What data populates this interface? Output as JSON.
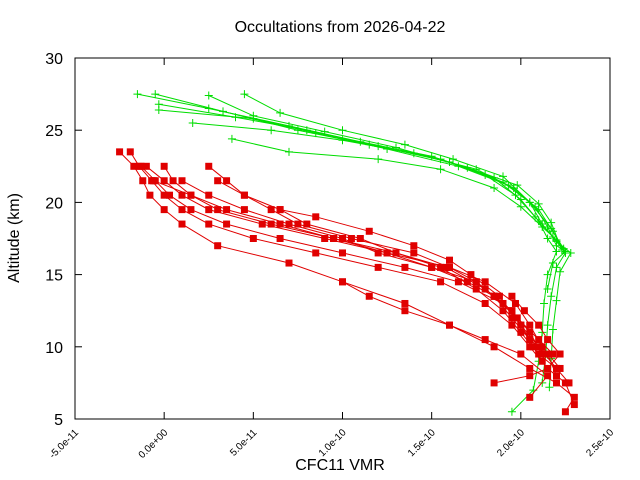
{
  "chart_data": {
    "type": "line",
    "title": "Occultations from 2026-04-22",
    "xlabel": "CFC11 VMR",
    "ylabel": "Altitude (km)",
    "xlim": [
      -5e-11,
      2.5e-10
    ],
    "ylim": [
      5,
      30
    ],
    "grid": false,
    "legend": "none",
    "x_tick_labels": [
      "-5.0e-11",
      "0.0e+00",
      "5.0e-11",
      "1.0e-10",
      "1.5e-10",
      "2.0e-10",
      "2.5e-10"
    ],
    "y_tick_labels": [
      "5",
      "10",
      "15",
      "20",
      "25",
      "30"
    ],
    "colors": {
      "green": "#00dd00",
      "red": "#e00000"
    },
    "series": [
      {
        "color": "green",
        "marker": "plus",
        "points": [
          [
            -5e-12,
            27.5
          ],
          [
            3.3e-11,
            26.3
          ],
          [
            7.5e-11,
            25.0
          ],
          [
            1.15e-10,
            24.0
          ],
          [
            1.55e-10,
            23.0
          ],
          [
            1.85e-10,
            21.7
          ],
          [
            2e-10,
            20.2
          ],
          [
            2.1e-10,
            18.7
          ],
          [
            2.15e-10,
            17.5
          ],
          [
            2.2e-10,
            16.6
          ],
          [
            2.15e-10,
            15.0
          ],
          [
            2.13e-10,
            13.0
          ],
          [
            2.12e-10,
            11.0
          ],
          [
            2.1e-10,
            9.0
          ],
          [
            2.07e-10,
            7.0
          ],
          [
            1.95e-10,
            5.5
          ]
        ]
      },
      {
        "color": "green",
        "marker": "plus",
        "points": [
          [
            -1.5e-11,
            27.5
          ],
          [
            2.5e-11,
            26.5
          ],
          [
            7e-11,
            25.3
          ],
          [
            1.1e-10,
            24.2
          ],
          [
            1.5e-10,
            23.2
          ],
          [
            1.8e-10,
            21.9
          ],
          [
            1.97e-10,
            20.5
          ],
          [
            2.08e-10,
            19.0
          ],
          [
            2.18e-10,
            17.6
          ],
          [
            2.25e-10,
            16.5
          ],
          [
            2.2e-10,
            15.5
          ],
          [
            2.17e-10,
            13.5
          ],
          [
            2.15e-10,
            11.5
          ],
          [
            2.14e-10,
            9.5
          ],
          [
            2.12e-10,
            7.5
          ]
        ]
      },
      {
        "color": "green",
        "marker": "plus",
        "points": [
          [
            -3e-12,
            26.8
          ],
          [
            4e-11,
            25.9
          ],
          [
            8e-11,
            25.0
          ],
          [
            1.2e-10,
            23.9
          ],
          [
            1.6e-10,
            22.8
          ],
          [
            1.9e-10,
            21.4
          ],
          [
            2.05e-10,
            20.0
          ],
          [
            2.12e-10,
            18.5
          ],
          [
            2.2e-10,
            17.3
          ],
          [
            2.28e-10,
            16.5
          ],
          [
            2.22e-10,
            15.2
          ],
          [
            2.2e-10,
            13.2
          ],
          [
            2.18e-10,
            11.2
          ],
          [
            2.17e-10,
            9.2
          ],
          [
            2.16e-10,
            7.2
          ]
        ]
      },
      {
        "color": "green",
        "marker": "plus",
        "points": [
          [
            -3e-12,
            26.4
          ],
          [
            5e-11,
            25.8
          ],
          [
            8.5e-11,
            24.8
          ],
          [
            1.25e-10,
            23.7
          ],
          [
            1.65e-10,
            22.5
          ],
          [
            1.93e-10,
            21.2
          ],
          [
            2.08e-10,
            19.7
          ],
          [
            2.15e-10,
            18.3
          ],
          [
            2.2e-10,
            17.0
          ],
          [
            2.25e-10,
            16.6
          ],
          [
            2.18e-10,
            15.8
          ],
          [
            2.15e-10,
            14.0
          ]
        ]
      },
      {
        "color": "green",
        "marker": "plus",
        "points": [
          [
            1.6e-11,
            25.5
          ],
          [
            6e-11,
            25.0
          ],
          [
            1e-10,
            24.3
          ],
          [
            1.4e-10,
            23.4
          ],
          [
            1.75e-10,
            22.3
          ],
          [
            1.96e-10,
            21.0
          ],
          [
            2.1e-10,
            19.5
          ],
          [
            2.18e-10,
            18.0
          ],
          [
            2.24e-10,
            16.8
          ]
        ]
      },
      {
        "color": "green",
        "marker": "plus",
        "points": [
          [
            3.8e-11,
            24.4
          ],
          [
            7e-11,
            23.5
          ],
          [
            1.2e-10,
            23.0
          ],
          [
            1.55e-10,
            22.3
          ],
          [
            1.85e-10,
            21.0
          ],
          [
            2e-10,
            19.7
          ],
          [
            2.12e-10,
            18.3
          ],
          [
            2.2e-10,
            17.4
          ],
          [
            2.25e-10,
            16.6
          ]
        ]
      },
      {
        "color": "green",
        "marker": "plus",
        "points": [
          [
            2.5e-11,
            27.4
          ],
          [
            5e-11,
            26.0
          ],
          [
            9e-11,
            24.9
          ],
          [
            1.3e-10,
            23.8
          ],
          [
            1.7e-10,
            22.4
          ],
          [
            1.98e-10,
            21.2
          ],
          [
            2.1e-10,
            19.9
          ],
          [
            2.17e-10,
            18.6
          ],
          [
            2.23e-10,
            16.7
          ]
        ]
      },
      {
        "color": "green",
        "marker": "plus",
        "points": [
          [
            4.5e-11,
            27.5
          ],
          [
            6.5e-11,
            26.2
          ],
          [
            1e-10,
            25.0
          ],
          [
            1.35e-10,
            24.0
          ],
          [
            1.62e-10,
            23.0
          ],
          [
            1.9e-10,
            21.8
          ],
          [
            2.05e-10,
            20.0
          ],
          [
            2.17e-10,
            18.2
          ],
          [
            2.24e-10,
            16.7
          ]
        ]
      },
      {
        "color": "red",
        "marker": "square",
        "points": [
          [
            -2.5e-11,
            23.5
          ],
          [
            -1.7e-11,
            22.5
          ],
          [
            -1.2e-11,
            21.5
          ],
          [
            -8e-12,
            20.5
          ],
          [
            0,
            19.5
          ],
          [
            1e-11,
            18.5
          ],
          [
            3e-11,
            17.0
          ],
          [
            7e-11,
            15.8
          ],
          [
            1e-10,
            14.5
          ],
          [
            1.35e-10,
            13.0
          ],
          [
            1.6e-10,
            11.5
          ],
          [
            1.85e-10,
            10.0
          ],
          [
            2.05e-10,
            8.5
          ],
          [
            2.2e-10,
            7.5
          ],
          [
            2.3e-10,
            6.5
          ],
          [
            2.25e-10,
            5.5
          ]
        ]
      },
      {
        "color": "red",
        "marker": "square",
        "points": [
          [
            -1.9e-11,
            23.5
          ],
          [
            -1.4e-11,
            22.5
          ],
          [
            -7e-12,
            21.5
          ],
          [
            0,
            20.5
          ],
          [
            1e-11,
            19.5
          ],
          [
            2.5e-11,
            18.5
          ],
          [
            5e-11,
            17.5
          ],
          [
            8.5e-11,
            16.5
          ],
          [
            1.2e-10,
            15.5
          ],
          [
            1.55e-10,
            14.5
          ],
          [
            1.8e-10,
            13.0
          ],
          [
            1.95e-10,
            11.5
          ],
          [
            2.05e-10,
            10.0
          ],
          [
            2.15e-10,
            8.5
          ],
          [
            2.25e-10,
            7.5
          ],
          [
            2.3e-10,
            6.0
          ]
        ]
      },
      {
        "color": "red",
        "marker": "square",
        "points": [
          [
            -1.3e-11,
            22.5
          ],
          [
            -5e-12,
            21.5
          ],
          [
            3e-12,
            20.5
          ],
          [
            1.5e-11,
            19.5
          ],
          [
            3.5e-11,
            18.5
          ],
          [
            6.5e-11,
            17.5
          ],
          [
            1e-10,
            16.5
          ],
          [
            1.35e-10,
            15.5
          ],
          [
            1.65e-10,
            14.5
          ],
          [
            1.9e-10,
            13.0
          ],
          [
            2e-10,
            11.5
          ],
          [
            2.1e-10,
            10.0
          ],
          [
            2.2e-10,
            8.5
          ],
          [
            2.27e-10,
            7.5
          ]
        ]
      },
      {
        "color": "red",
        "marker": "square",
        "points": [
          [
            -1e-11,
            22.5
          ],
          [
            0,
            21.5
          ],
          [
            1e-11,
            20.5
          ],
          [
            2.5e-11,
            19.5
          ],
          [
            5.5e-11,
            18.5
          ],
          [
            9e-11,
            17.5
          ],
          [
            1.25e-10,
            16.5
          ],
          [
            1.6e-10,
            15.5
          ],
          [
            1.8e-10,
            14.5
          ],
          [
            1.97e-10,
            13.0
          ],
          [
            2.05e-10,
            11.5
          ],
          [
            2.12e-10,
            10.0
          ],
          [
            2.22e-10,
            8.5
          ]
        ]
      },
      {
        "color": "red",
        "marker": "square",
        "points": [
          [
            0,
            22.5
          ],
          [
            5e-12,
            21.5
          ],
          [
            1.5e-11,
            20.5
          ],
          [
            3.5e-11,
            19.5
          ],
          [
            6.5e-11,
            18.5
          ],
          [
            9.5e-11,
            17.5
          ],
          [
            1.25e-10,
            16.5
          ],
          [
            1.5e-10,
            15.5
          ],
          [
            1.75e-10,
            14.5
          ],
          [
            1.85e-10,
            13.5
          ],
          [
            1.95e-10,
            12.0
          ],
          [
            2.05e-10,
            10.5
          ],
          [
            2.15e-10,
            9.5
          ],
          [
            2.2e-10,
            8.0
          ]
        ]
      },
      {
        "color": "red",
        "marker": "square",
        "points": [
          [
            -6e-12,
            21.5
          ],
          [
            1.5e-11,
            20.5
          ],
          [
            3e-11,
            19.5
          ],
          [
            6e-11,
            18.5
          ],
          [
            9.5e-11,
            17.5
          ],
          [
            1.3e-10,
            16.5
          ],
          [
            1.55e-10,
            15.5
          ],
          [
            1.75e-10,
            14.0
          ],
          [
            1.9e-10,
            12.5
          ],
          [
            2e-10,
            11.0
          ],
          [
            2.1e-10,
            9.5
          ],
          [
            2.2e-10,
            8.5
          ]
        ]
      },
      {
        "color": "red",
        "marker": "square",
        "points": [
          [
            1e-11,
            21.5
          ],
          [
            2.5e-11,
            20.5
          ],
          [
            4.5e-11,
            19.5
          ],
          [
            7e-11,
            18.5
          ],
          [
            1e-10,
            17.5
          ],
          [
            1.2e-10,
            16.5
          ],
          [
            1.5e-10,
            15.5
          ],
          [
            1.7e-10,
            14.5
          ],
          [
            1.85e-10,
            13.5
          ],
          [
            1.95e-10,
            12.5
          ],
          [
            2.05e-10,
            10.5
          ]
        ]
      },
      {
        "color": "red",
        "marker": "square",
        "points": [
          [
            2.5e-11,
            22.5
          ],
          [
            3.5e-11,
            21.5
          ],
          [
            4.5e-11,
            20.5
          ],
          [
            6e-11,
            19.5
          ],
          [
            7.5e-11,
            18.5
          ],
          [
            1.05e-10,
            17.5
          ],
          [
            1.4e-10,
            16.5
          ],
          [
            1.6e-10,
            15.5
          ],
          [
            1.75e-10,
            14.5
          ],
          [
            1.85e-10,
            13.5
          ],
          [
            1.98e-10,
            12.0
          ],
          [
            2.1e-10,
            10.5
          ],
          [
            2.18e-10,
            9.5
          ]
        ]
      },
      {
        "color": "red",
        "marker": "square",
        "points": [
          [
            3e-11,
            21.5
          ],
          [
            4.5e-11,
            20.5
          ],
          [
            6.5e-11,
            19.5
          ],
          [
            8e-11,
            18.5
          ],
          [
            1.1e-10,
            17.5
          ],
          [
            1.3e-10,
            16.5
          ],
          [
            1.58e-10,
            15.5
          ],
          [
            1.8e-10,
            14.0
          ],
          [
            1.95e-10,
            12.5
          ],
          [
            2.05e-10,
            11.0
          ],
          [
            2.12e-10,
            9.5
          ]
        ]
      },
      {
        "color": "red",
        "marker": "square",
        "points": [
          [
            6.5e-11,
            19.5
          ],
          [
            8.5e-11,
            19.0
          ],
          [
            1.15e-10,
            18.0
          ],
          [
            1.4e-10,
            17.0
          ],
          [
            1.6e-10,
            16.0
          ],
          [
            1.72e-10,
            15.0
          ],
          [
            1.88e-10,
            13.5
          ],
          [
            2e-10,
            11.5
          ],
          [
            2.07e-10,
            10.0
          ],
          [
            2.12e-10,
            9.0
          ]
        ]
      },
      {
        "color": "red",
        "marker": "square",
        "points": [
          [
            1.85e-10,
            7.5
          ],
          [
            2.05e-10,
            8.0
          ],
          [
            2.15e-10,
            8.5
          ],
          [
            2.22e-10,
            9.5
          ],
          [
            2.15e-10,
            10.5
          ],
          [
            2.1e-10,
            11.5
          ],
          [
            2.02e-10,
            12.5
          ],
          [
            1.95e-10,
            13.5
          ]
        ]
      },
      {
        "color": "red",
        "marker": "square",
        "points": [
          [
            1e-10,
            14.5
          ],
          [
            1.15e-10,
            13.5
          ],
          [
            1.35e-10,
            12.5
          ],
          [
            1.6e-10,
            11.5
          ],
          [
            1.8e-10,
            10.5
          ],
          [
            2e-10,
            9.5
          ],
          [
            2.15e-10,
            8.0
          ],
          [
            2.05e-10,
            6.5
          ]
        ]
      }
    ]
  }
}
